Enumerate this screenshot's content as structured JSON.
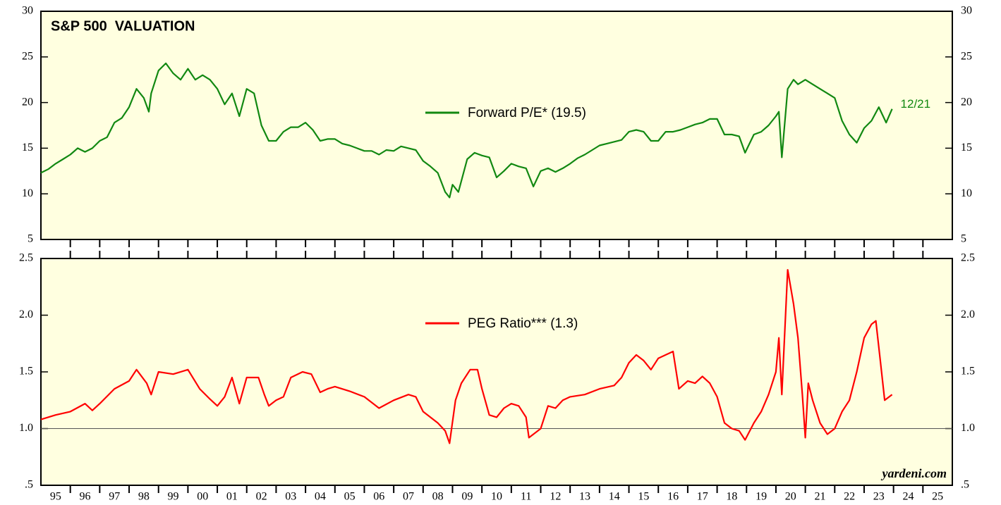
{
  "chart_data": [
    {
      "type": "line",
      "title": "S&P 500  VALUATION",
      "x": [
        1995.0,
        1995.25,
        1995.5,
        1995.75,
        1996.0,
        1996.25,
        1996.5,
        1996.75,
        1997.0,
        1997.25,
        1997.5,
        1997.75,
        1998.0,
        1998.25,
        1998.5,
        1998.67,
        1998.75,
        1999.0,
        1999.25,
        1999.5,
        1999.75,
        2000.0,
        2000.25,
        2000.5,
        2000.75,
        2001.0,
        2001.25,
        2001.5,
        2001.75,
        2002.0,
        2002.25,
        2002.5,
        2002.75,
        2003.0,
        2003.25,
        2003.5,
        2003.75,
        2004.0,
        2004.25,
        2004.5,
        2004.75,
        2005.0,
        2005.25,
        2005.5,
        2005.75,
        2006.0,
        2006.25,
        2006.5,
        2006.75,
        2007.0,
        2007.25,
        2007.5,
        2007.75,
        2008.0,
        2008.25,
        2008.5,
        2008.75,
        2008.9,
        2009.0,
        2009.2,
        2009.5,
        2009.75,
        2010.0,
        2010.25,
        2010.5,
        2010.75,
        2011.0,
        2011.25,
        2011.5,
        2011.75,
        2012.0,
        2012.25,
        2012.5,
        2012.75,
        2013.0,
        2013.25,
        2013.5,
        2013.75,
        2014.0,
        2014.25,
        2014.5,
        2014.75,
        2015.0,
        2015.25,
        2015.5,
        2015.75,
        2016.0,
        2016.25,
        2016.5,
        2016.75,
        2017.0,
        2017.25,
        2017.5,
        2017.75,
        2018.0,
        2018.25,
        2018.5,
        2018.75,
        2018.95,
        2019.25,
        2019.5,
        2019.75,
        2020.0,
        2020.1,
        2020.2,
        2020.4,
        2020.6,
        2020.75,
        2021.0,
        2021.25,
        2021.5,
        2021.75,
        2022.0,
        2022.25,
        2022.5,
        2022.75,
        2023.0,
        2023.25,
        2023.5,
        2023.75,
        2023.95
      ],
      "series": [
        {
          "name": "Forward P/E* (19.5)",
          "color": "#118811",
          "values": [
            12.3,
            12.7,
            13.3,
            13.8,
            14.3,
            15.0,
            14.6,
            15.0,
            15.8,
            16.2,
            17.8,
            18.3,
            19.5,
            21.5,
            20.5,
            19.0,
            21.0,
            23.5,
            24.3,
            23.2,
            22.5,
            23.7,
            22.5,
            23.0,
            22.5,
            21.5,
            19.8,
            21.0,
            18.5,
            21.5,
            21.0,
            17.5,
            15.8,
            15.8,
            16.8,
            17.3,
            17.3,
            17.8,
            17.0,
            15.8,
            16.0,
            16.0,
            15.5,
            15.3,
            15.0,
            14.7,
            14.7,
            14.3,
            14.8,
            14.7,
            15.2,
            15.0,
            14.8,
            13.6,
            13.0,
            12.3,
            10.2,
            9.6,
            11.0,
            10.2,
            13.8,
            14.5,
            14.2,
            14.0,
            11.8,
            12.5,
            13.3,
            13.0,
            12.8,
            10.8,
            12.5,
            12.8,
            12.4,
            12.8,
            13.3,
            13.9,
            14.3,
            14.8,
            15.3,
            15.5,
            15.7,
            15.9,
            16.8,
            17.0,
            16.8,
            15.8,
            15.8,
            16.8,
            16.8,
            17.0,
            17.3,
            17.6,
            17.8,
            18.2,
            18.2,
            16.5,
            16.5,
            16.3,
            14.5,
            16.5,
            16.8,
            17.5,
            18.5,
            19.0,
            14.0,
            21.5,
            22.5,
            22.0,
            22.5,
            22.0,
            21.5,
            21.0,
            20.5,
            18.0,
            16.5,
            15.6,
            17.2,
            18.0,
            19.5,
            17.8,
            19.3
          ]
        }
      ],
      "annotation": "12/21",
      "xlim": [
        1995,
        2026
      ],
      "ylim": [
        5,
        30
      ],
      "yticks": [
        5,
        10,
        15,
        20,
        25,
        30
      ]
    },
    {
      "type": "line",
      "x": [
        1995.0,
        1995.5,
        1996.0,
        1996.5,
        1996.75,
        1997.0,
        1997.5,
        1998.0,
        1998.25,
        1998.6,
        1998.75,
        1999.0,
        1999.5,
        2000.0,
        2000.4,
        2000.75,
        2001.0,
        2001.25,
        2001.5,
        2001.75,
        2002.0,
        2002.4,
        2002.6,
        2002.75,
        2003.0,
        2003.25,
        2003.5,
        2003.9,
        2004.2,
        2004.5,
        2004.75,
        2005.0,
        2005.5,
        2006.0,
        2006.5,
        2007.0,
        2007.5,
        2007.75,
        2008.0,
        2008.5,
        2008.75,
        2008.9,
        2009.1,
        2009.3,
        2009.6,
        2009.85,
        2010.0,
        2010.25,
        2010.5,
        2010.75,
        2011.0,
        2011.25,
        2011.5,
        2011.6,
        2012.0,
        2012.25,
        2012.5,
        2012.75,
        2013.0,
        2013.5,
        2014.0,
        2014.5,
        2014.75,
        2015.0,
        2015.25,
        2015.5,
        2015.75,
        2016.0,
        2016.25,
        2016.5,
        2016.7,
        2017.0,
        2017.25,
        2017.5,
        2017.75,
        2018.0,
        2018.25,
        2018.5,
        2018.75,
        2018.95,
        2019.25,
        2019.5,
        2019.75,
        2020.0,
        2020.1,
        2020.2,
        2020.4,
        2020.6,
        2020.75,
        2020.9,
        2021.0,
        2021.1,
        2021.25,
        2021.5,
        2021.75,
        2022.0,
        2022.25,
        2022.5,
        2022.75,
        2023.0,
        2023.25,
        2023.4,
        2023.55,
        2023.7,
        2023.95
      ],
      "series": [
        {
          "name": "PEG Ratio*** (1.3)",
          "color": "#ff0000",
          "values": [
            1.08,
            1.12,
            1.15,
            1.22,
            1.16,
            1.22,
            1.35,
            1.42,
            1.52,
            1.4,
            1.3,
            1.5,
            1.48,
            1.52,
            1.35,
            1.26,
            1.2,
            1.28,
            1.45,
            1.22,
            1.45,
            1.45,
            1.3,
            1.2,
            1.25,
            1.28,
            1.45,
            1.5,
            1.48,
            1.32,
            1.35,
            1.37,
            1.33,
            1.28,
            1.18,
            1.25,
            1.3,
            1.28,
            1.15,
            1.05,
            0.98,
            0.87,
            1.25,
            1.4,
            1.52,
            1.52,
            1.35,
            1.12,
            1.1,
            1.18,
            1.22,
            1.2,
            1.1,
            0.92,
            1.0,
            1.2,
            1.18,
            1.25,
            1.28,
            1.3,
            1.35,
            1.38,
            1.45,
            1.58,
            1.65,
            1.6,
            1.52,
            1.62,
            1.65,
            1.68,
            1.35,
            1.42,
            1.4,
            1.46,
            1.4,
            1.28,
            1.05,
            1.0,
            0.98,
            0.9,
            1.05,
            1.15,
            1.3,
            1.5,
            1.8,
            1.3,
            2.4,
            2.1,
            1.8,
            1.3,
            0.92,
            1.4,
            1.25,
            1.05,
            0.95,
            1.0,
            1.15,
            1.25,
            1.5,
            1.8,
            1.92,
            1.95,
            1.6,
            1.25,
            1.3
          ]
        }
      ],
      "source": "yardeni.com",
      "reference_line": 1.0,
      "xlim": [
        1995,
        2026
      ],
      "ylim": [
        0.5,
        2.5
      ],
      "yticks": [
        {
          "value": 0.5,
          "label": ".5"
        },
        {
          "value": 1.0,
          "label": "1.0"
        },
        {
          "value": 1.5,
          "label": "1.5"
        },
        {
          "value": 2.0,
          "label": "2.0"
        },
        {
          "value": 2.5,
          "label": "2.5"
        }
      ],
      "xticks": [
        {
          "value": 1995.5,
          "label": "95"
        },
        {
          "value": 1996.5,
          "label": "96"
        },
        {
          "value": 1997.5,
          "label": "97"
        },
        {
          "value": 1998.5,
          "label": "98"
        },
        {
          "value": 1999.5,
          "label": "99"
        },
        {
          "value": 2000.5,
          "label": "00"
        },
        {
          "value": 2001.5,
          "label": "01"
        },
        {
          "value": 2002.5,
          "label": "02"
        },
        {
          "value": 2003.5,
          "label": "03"
        },
        {
          "value": 2004.5,
          "label": "04"
        },
        {
          "value": 2005.5,
          "label": "05"
        },
        {
          "value": 2006.5,
          "label": "06"
        },
        {
          "value": 2007.5,
          "label": "07"
        },
        {
          "value": 2008.5,
          "label": "08"
        },
        {
          "value": 2009.5,
          "label": "09"
        },
        {
          "value": 2010.5,
          "label": "10"
        },
        {
          "value": 2011.5,
          "label": "11"
        },
        {
          "value": 2012.5,
          "label": "12"
        },
        {
          "value": 2013.5,
          "label": "13"
        },
        {
          "value": 2014.5,
          "label": "14"
        },
        {
          "value": 2015.5,
          "label": "15"
        },
        {
          "value": 2016.5,
          "label": "16"
        },
        {
          "value": 2017.5,
          "label": "17"
        },
        {
          "value": 2018.5,
          "label": "18"
        },
        {
          "value": 2019.5,
          "label": "19"
        },
        {
          "value": 2020.5,
          "label": "20"
        },
        {
          "value": 2021.5,
          "label": "21"
        },
        {
          "value": 2022.5,
          "label": "22"
        },
        {
          "value": 2023.5,
          "label": "23"
        },
        {
          "value": 2024.5,
          "label": "24"
        },
        {
          "value": 2025.5,
          "label": "25"
        }
      ]
    }
  ]
}
